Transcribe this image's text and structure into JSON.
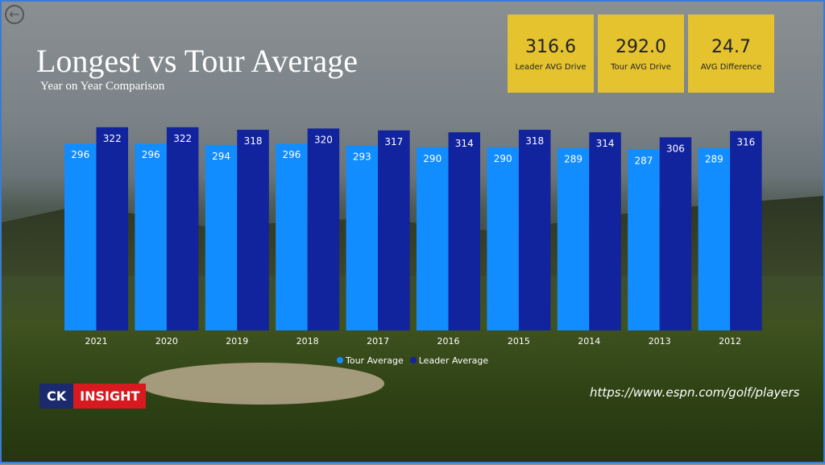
{
  "header": {
    "title": "Longest vs Tour Average",
    "subtitle": "Year on Year Comparison"
  },
  "kpis": [
    {
      "value": "316.6",
      "label": "Leader AVG Drive"
    },
    {
      "value": "292.0",
      "label": "Tour AVG Drive"
    },
    {
      "value": "24.7",
      "label": "AVG Difference"
    }
  ],
  "logo": {
    "part1": "CK",
    "part2": "INSIGHT"
  },
  "source": "https://www.espn.com/golf/players",
  "icons": {
    "back": "back-arrow-icon"
  },
  "chart_data": {
    "type": "bar",
    "categories": [
      "2021",
      "2020",
      "2019",
      "2018",
      "2017",
      "2016",
      "2015",
      "2014",
      "2013",
      "2012"
    ],
    "series": [
      {
        "name": "Tour Average",
        "color": "#118dff",
        "values": [
          296,
          296,
          294,
          296,
          293,
          290,
          290,
          289,
          287,
          289
        ]
      },
      {
        "name": "Leader Average",
        "color": "#12239e",
        "values": [
          322,
          322,
          318,
          320,
          317,
          314,
          318,
          314,
          306,
          316
        ]
      }
    ],
    "ylim": [
      0,
      330
    ],
    "grid": false,
    "legend": "bottom-center",
    "data_labels": true
  }
}
